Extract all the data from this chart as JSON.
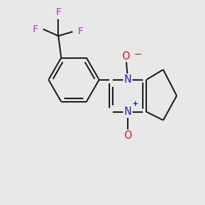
{
  "background_color": "#e8e8e8",
  "bond_color": "#1a1a1a",
  "nitrogen_color": "#1a1acc",
  "oxygen_color": "#cc1a1a",
  "fluorine_color": "#cc22cc",
  "bond_width": 1.5,
  "figsize": [
    3.0,
    3.0
  ],
  "dpi": 100,
  "xlim": [
    -1.05,
    1.05
  ],
  "ylim": [
    -1.05,
    1.05
  ]
}
